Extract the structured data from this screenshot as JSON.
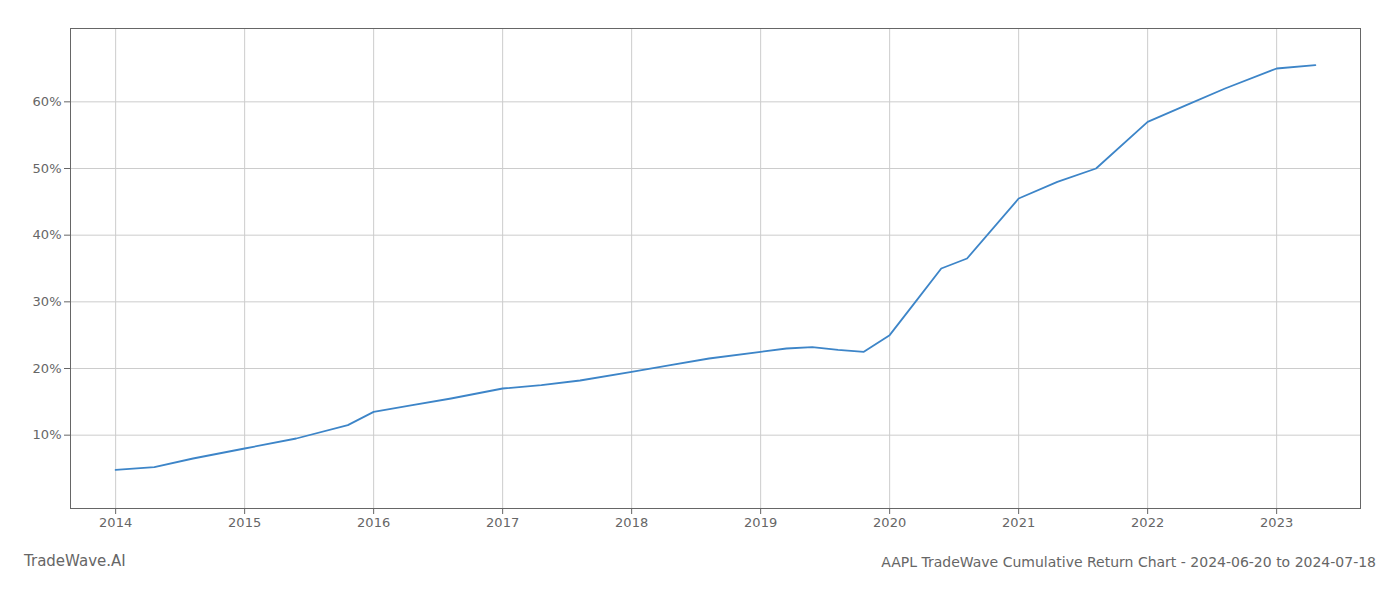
{
  "chart_data": {
    "type": "line",
    "title": "AAPL TradeWave Cumulative Return Chart - 2024-06-20 to 2024-07-18",
    "annotations": [
      "TradeWave.AI"
    ],
    "x": [
      2014.0,
      2014.3,
      2014.6,
      2015.0,
      2015.4,
      2015.8,
      2016.0,
      2016.3,
      2016.6,
      2017.0,
      2017.3,
      2017.6,
      2018.0,
      2018.3,
      2018.6,
      2019.0,
      2019.2,
      2019.4,
      2019.6,
      2019.8,
      2020.0,
      2020.2,
      2020.4,
      2020.6,
      2021.0,
      2021.3,
      2021.6,
      2022.0,
      2022.3,
      2022.6,
      2023.0,
      2023.3
    ],
    "values": [
      4.8,
      5.2,
      6.5,
      8.0,
      9.5,
      11.5,
      13.5,
      14.5,
      15.5,
      17.0,
      17.5,
      18.2,
      19.5,
      20.5,
      21.5,
      22.5,
      23.0,
      23.2,
      22.8,
      22.5,
      25.0,
      30.0,
      35.0,
      36.5,
      45.5,
      48.0,
      50.0,
      57.0,
      59.5,
      62.0,
      65.0,
      65.5
    ],
    "color": "#3d85c8",
    "xlim": [
      2013.65,
      2023.65
    ],
    "ylim": [
      -1,
      71
    ],
    "xticks": [
      2014,
      2015,
      2016,
      2017,
      2018,
      2019,
      2020,
      2021,
      2022,
      2023
    ],
    "yticks": [
      {
        "value": 10,
        "label": "10%"
      },
      {
        "value": 20,
        "label": "20%"
      },
      {
        "value": 30,
        "label": "30%"
      },
      {
        "value": 40,
        "label": "40%"
      },
      {
        "value": 50,
        "label": "50%"
      },
      {
        "value": 60,
        "label": "60%"
      }
    ],
    "grid": true
  }
}
